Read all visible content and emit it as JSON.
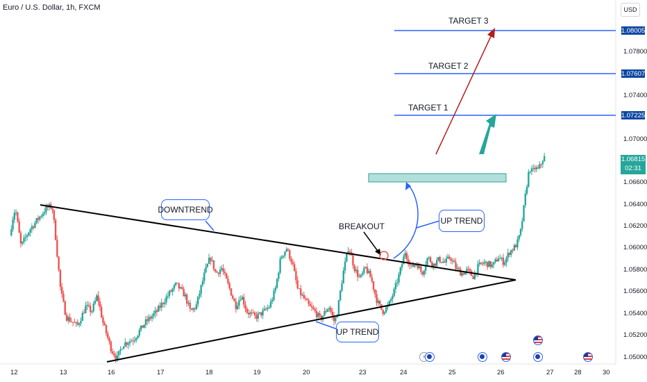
{
  "title": "Euro / U.S. Dollar, 1h, FXCM",
  "currency": "USD",
  "colors": {
    "bull": "#26a69a",
    "bear": "#ef5350",
    "target_line": "#2962ff",
    "zone": "#b2dfdb",
    "red_arrow": "#b71c1c",
    "green_arrow": "#26a69a",
    "triangle": "#000000"
  },
  "chart_data": {
    "type": "candlestick",
    "title": "Euro / U.S. Dollar, 1h, FXCM",
    "x_range": [
      "12",
      "30"
    ],
    "y_range": [
      1.0492,
      1.0826
    ],
    "price_ticks": [
      "1.07800",
      "1.07400",
      "1.07000",
      "1.06600",
      "1.06400",
      "1.06200",
      "1.06000",
      "1.05800",
      "1.05600",
      "1.05400",
      "1.05200",
      "1.05000"
    ],
    "time_ticks": [
      "12",
      "13",
      "16",
      "17",
      "18",
      "19",
      "20",
      "23",
      "24",
      "25",
      "26",
      "27",
      "28",
      "30"
    ],
    "path": [
      [
        12.0,
        1.061
      ],
      [
        12.05,
        1.0625
      ],
      [
        12.1,
        1.0635
      ],
      [
        12.2,
        1.06
      ],
      [
        12.35,
        1.0615
      ],
      [
        12.5,
        1.0625
      ],
      [
        12.65,
        1.0635
      ],
      [
        12.75,
        1.0637
      ],
      [
        12.8,
        1.0615
      ],
      [
        12.9,
        1.056
      ],
      [
        13.0,
        1.0535
      ],
      [
        13.2,
        1.0527
      ],
      [
        13.35,
        1.0545
      ],
      [
        13.45,
        1.054
      ],
      [
        13.55,
        1.0555
      ],
      [
        13.65,
        1.053
      ],
      [
        13.8,
        1.0505
      ],
      [
        13.9,
        1.0497
      ],
      [
        14.0,
        1.051
      ],
      [
        14.2,
        1.0515
      ],
      [
        14.4,
        1.053
      ],
      [
        14.6,
        1.054
      ],
      [
        14.8,
        1.0555
      ],
      [
        14.95,
        1.0565
      ],
      [
        15.1,
        1.0555
      ],
      [
        15.2,
        1.054
      ],
      [
        15.3,
        1.0545
      ],
      [
        15.45,
        1.0575
      ],
      [
        15.55,
        1.059
      ],
      [
        15.65,
        1.0575
      ],
      [
        15.75,
        1.058
      ],
      [
        15.9,
        1.056
      ],
      [
        16.0,
        1.0545
      ],
      [
        16.1,
        1.0555
      ],
      [
        16.2,
        1.054
      ],
      [
        16.35,
        1.0535
      ],
      [
        16.5,
        1.054
      ],
      [
        16.6,
        1.0545
      ],
      [
        16.7,
        1.056
      ],
      [
        16.8,
        1.059
      ],
      [
        16.9,
        1.0598
      ],
      [
        17.0,
        1.0585
      ],
      [
        17.1,
        1.056
      ],
      [
        17.3,
        1.0545
      ],
      [
        17.4,
        1.054
      ],
      [
        17.5,
        1.0533
      ],
      [
        17.65,
        1.0545
      ],
      [
        17.75,
        1.053
      ],
      [
        17.8,
        1.054
      ],
      [
        17.9,
        1.0575
      ],
      [
        18.0,
        1.06
      ],
      [
        18.1,
        1.058
      ],
      [
        18.2,
        1.057
      ],
      [
        18.3,
        1.058
      ],
      [
        18.4,
        1.057
      ],
      [
        18.5,
        1.055
      ],
      [
        18.6,
        1.054
      ],
      [
        18.7,
        1.0545
      ],
      [
        18.8,
        1.0558
      ],
      [
        18.9,
        1.0575
      ],
      [
        19.0,
        1.0595
      ],
      [
        19.1,
        1.058
      ],
      [
        19.2,
        1.0585
      ],
      [
        19.3,
        1.0575
      ],
      [
        19.4,
        1.059
      ],
      [
        19.5,
        1.0583
      ],
      [
        19.6,
        1.0588
      ],
      [
        19.7,
        1.0585
      ],
      [
        19.8,
        1.059
      ],
      [
        19.9,
        1.058
      ],
      [
        20.0,
        1.0575
      ],
      [
        20.1,
        1.0578
      ],
      [
        20.2,
        1.0572
      ],
      [
        20.3,
        1.0582
      ],
      [
        20.4,
        1.0585
      ],
      [
        20.55,
        1.0582
      ],
      [
        20.65,
        1.059
      ],
      [
        20.75,
        1.0585
      ],
      [
        20.85,
        1.0595
      ],
      [
        20.95,
        1.06
      ],
      [
        21.0,
        1.0605
      ],
      [
        21.05,
        1.0615
      ],
      [
        21.1,
        1.0635
      ],
      [
        21.15,
        1.0655
      ],
      [
        21.2,
        1.0672
      ],
      [
        21.25,
        1.0668
      ],
      [
        21.3,
        1.0672
      ],
      [
        21.35,
        1.067
      ],
      [
        21.4,
        1.0675
      ],
      [
        21.45,
        1.06815
      ]
    ],
    "annotations": {
      "target_lines": [
        {
          "label": "TARGET 3",
          "price": "1.08005",
          "value": 1.08005
        },
        {
          "label": "TARGET 2",
          "price": "1.07607",
          "value": 1.07607
        },
        {
          "label": "TARGET 1",
          "price": "1.07225",
          "value": 1.07225
        }
      ],
      "last_price": "1.06815",
      "countdown": "02:31",
      "callouts": [
        "DOWNTREND",
        "UP TREND",
        "UP TREND"
      ],
      "breakout": "BREAKOUT"
    }
  }
}
